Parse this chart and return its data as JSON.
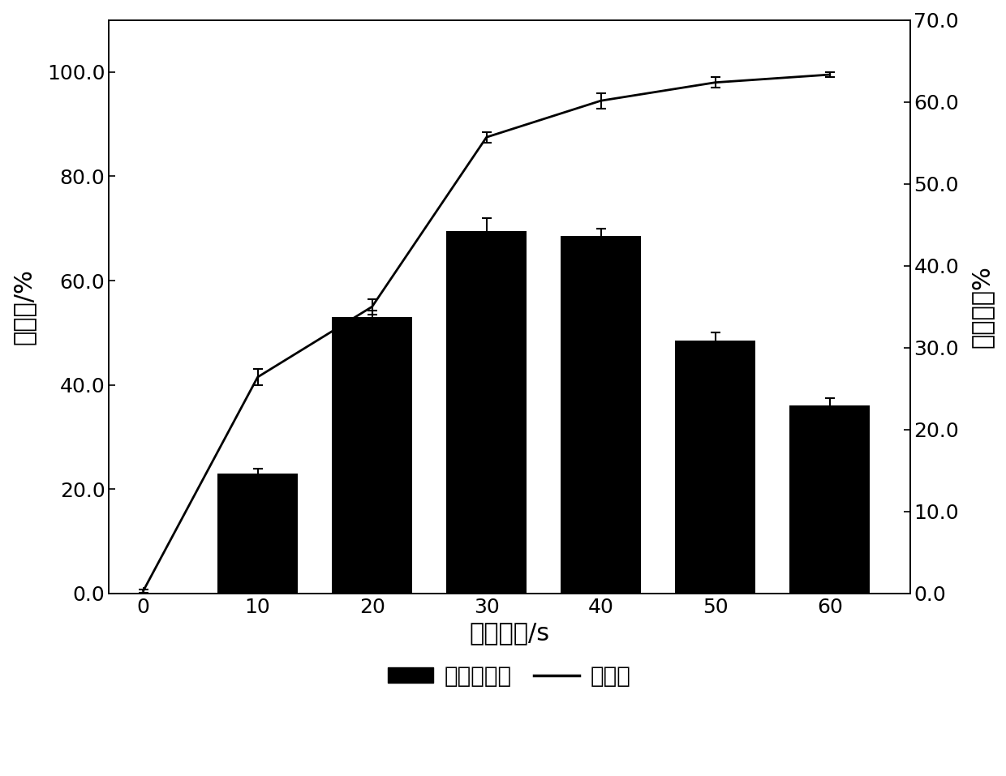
{
  "x_values": [
    0,
    10,
    20,
    30,
    40,
    50,
    60
  ],
  "bar_x": [
    10,
    20,
    30,
    40,
    50,
    60
  ],
  "bar_heights": [
    23.0,
    53.0,
    69.5,
    68.5,
    48.5,
    36.0
  ],
  "bar_errors": [
    1.0,
    1.2,
    2.5,
    1.5,
    1.5,
    1.5
  ],
  "line_y": [
    0.5,
    41.5,
    55.0,
    87.5,
    94.5,
    98.0,
    99.5
  ],
  "line_errors": [
    0.3,
    1.5,
    1.5,
    1.0,
    1.5,
    1.0,
    0.5
  ],
  "xlabel": "诱变时间/s",
  "ylabel_left": "致死率/%",
  "ylabel_right": "正突变率%",
  "xlim": [
    -3,
    67
  ],
  "ylim_left": [
    0,
    110
  ],
  "ylim_right": [
    0,
    68.75
  ],
  "yticks_left": [
    0.0,
    20.0,
    40.0,
    60.0,
    80.0,
    100.0
  ],
  "yticks_right": [
    0.0,
    10.0,
    20.0,
    30.0,
    40.0,
    50.0,
    60.0,
    70.0
  ],
  "xticks": [
    0,
    10,
    20,
    30,
    40,
    50,
    60
  ],
  "bar_color": "#000000",
  "line_color": "#000000",
  "legend_bar_label": "正突变率，",
  "legend_line_label": "致死率",
  "bar_width": 7.0,
  "font_size": 20,
  "tick_font_size": 18,
  "label_font_size": 22
}
